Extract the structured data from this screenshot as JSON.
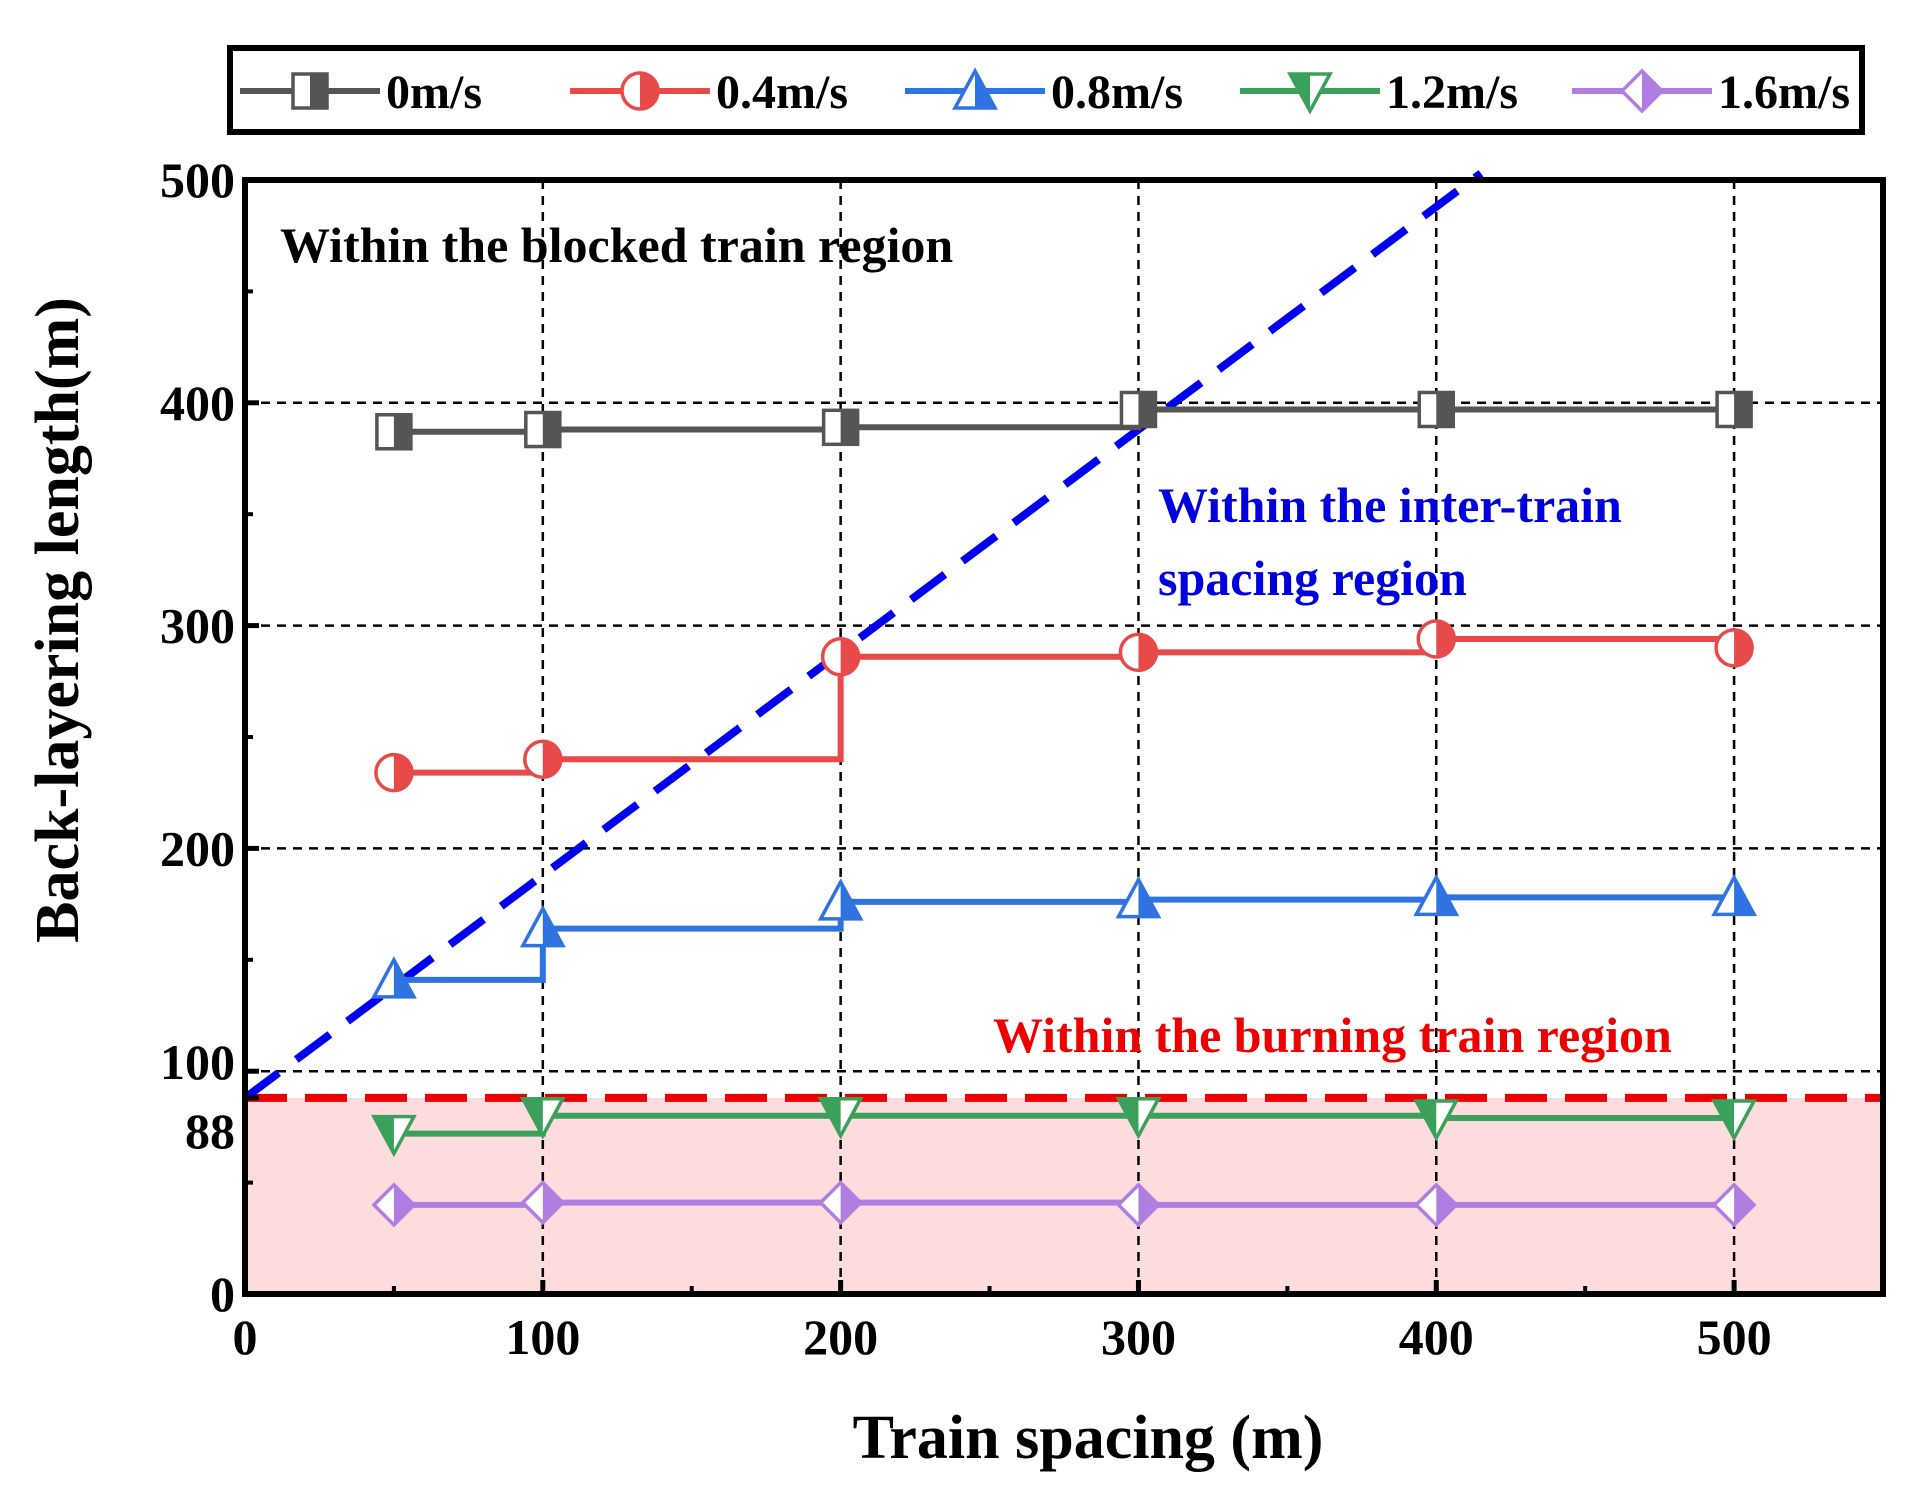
{
  "chart_data": {
    "type": "line",
    "xlabel": "Train spacing (m)",
    "ylabel": "Back-layering length(m)",
    "xlim": [
      0,
      550
    ],
    "ylim": [
      0,
      500
    ],
    "x_ticks": [
      "0",
      "100",
      "200",
      "300",
      "400",
      "500"
    ],
    "y_ticks": [
      "0",
      "88",
      "100",
      "200",
      "300",
      "400",
      "500"
    ],
    "grid": "dashed",
    "legend_position": "top",
    "x": [
      50,
      100,
      200,
      300,
      400,
      500
    ],
    "series": [
      {
        "name": "0m/s",
        "color": "#555555",
        "marker": "square",
        "values": [
          387,
          388,
          389,
          397,
          397,
          397
        ]
      },
      {
        "name": "0.4m/s",
        "color": "#e84a4a",
        "marker": "circle",
        "values": [
          234,
          240,
          286,
          288,
          294,
          290
        ]
      },
      {
        "name": "0.8m/s",
        "color": "#2f73e0",
        "marker": "triangle-up",
        "values": [
          141,
          164,
          176,
          177,
          178,
          178
        ]
      },
      {
        "name": "1.2m/s",
        "color": "#3aa05a",
        "marker": "triangle-down",
        "values": [
          72,
          80,
          80,
          80,
          79,
          79
        ]
      },
      {
        "name": "1.6m/s",
        "color": "#b07ee0",
        "marker": "diamond",
        "values": [
          40,
          41,
          41,
          40,
          40,
          40
        ]
      }
    ],
    "reference_lines": {
      "diagonal": {
        "color": "#0000ee",
        "x": [
          0,
          415
        ],
        "y": [
          88,
          503
        ]
      },
      "horizontal": {
        "color": "#ee0000",
        "y": 88
      }
    },
    "shaded_region": {
      "color": "#fcdcdc",
      "y": [
        0,
        88
      ]
    },
    "annotations": [
      {
        "text": "Within the blocked train region",
        "color": "#000000"
      },
      {
        "text": "Within the inter-train",
        "color": "#0000dd"
      },
      {
        "text": "spacing region",
        "color": "#0000dd"
      },
      {
        "text": "Within the burning train region",
        "color": "#ee0000"
      }
    ]
  }
}
